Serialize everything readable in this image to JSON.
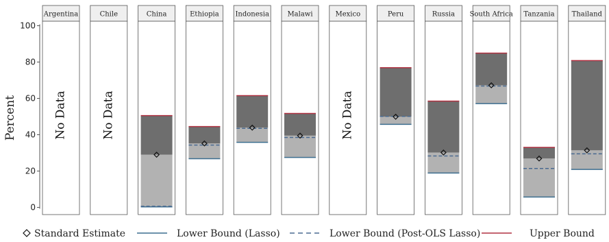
{
  "chart_data": {
    "type": "bar",
    "ylabel": "Percent",
    "ylim": [
      0,
      100
    ],
    "yticks": [
      0,
      20,
      40,
      60,
      80,
      100
    ],
    "no_data_label": "No Data",
    "panels": [
      {
        "country": "Argentina",
        "no_data": true
      },
      {
        "country": "Chile",
        "no_data": true
      },
      {
        "country": "China",
        "no_data": false,
        "upper": 50.5,
        "lower_lasso": 0.3,
        "lower_post_ols": 0.6,
        "standard": 29
      },
      {
        "country": "Ethiopia",
        "no_data": false,
        "upper": 44.5,
        "lower_lasso": 26.8,
        "lower_post_ols": 34.3,
        "standard": 35.2
      },
      {
        "country": "Indonesia",
        "no_data": false,
        "upper": 61.5,
        "lower_lasso": 35.8,
        "lower_post_ols": 43.5,
        "standard": 43.9
      },
      {
        "country": "Malawi",
        "no_data": false,
        "upper": 51.7,
        "lower_lasso": 27.5,
        "lower_post_ols": 38.5,
        "standard": 39.5
      },
      {
        "country": "Mexico",
        "no_data": true
      },
      {
        "country": "Peru",
        "no_data": false,
        "upper": 76.9,
        "lower_lasso": 45.7,
        "lower_post_ols": 50.1,
        "standard": 49.9
      },
      {
        "country": "Russia",
        "no_data": false,
        "upper": 58.5,
        "lower_lasso": 18.9,
        "lower_post_ols": 28.3,
        "standard": 30.2
      },
      {
        "country": "South Africa",
        "no_data": false,
        "upper": 84.9,
        "lower_lasso": 57.1,
        "lower_post_ols": 66.8,
        "standard": 67.2
      },
      {
        "country": "Tanzania",
        "no_data": false,
        "upper": 33,
        "lower_lasso": 5.7,
        "lower_post_ols": 21.4,
        "standard": 26.9
      },
      {
        "country": "Thailand",
        "no_data": false,
        "upper": 80.8,
        "lower_lasso": 20.9,
        "lower_post_ols": 29.5,
        "standard": 31.4
      }
    ],
    "legend": {
      "placement": "bottom",
      "items": [
        {
          "key": "standard",
          "label": "Standard Estimate"
        },
        {
          "key": "lower_lasso",
          "label": "Lower Bound (Lasso)"
        },
        {
          "key": "lower_post_ols",
          "label": "Lower Bound (Post-OLS Lasso)"
        },
        {
          "key": "upper",
          "label": "Upper Bound"
        }
      ]
    },
    "colors": {
      "upper_band": "#6e6e6e",
      "lower_band": "#b2b2b2",
      "lasso_line": "#3c6e8f",
      "post_ols_line": "#4a6a90",
      "upper_line": "#b03040",
      "header_fill": "#efefef",
      "panel_border": "#555555"
    }
  }
}
